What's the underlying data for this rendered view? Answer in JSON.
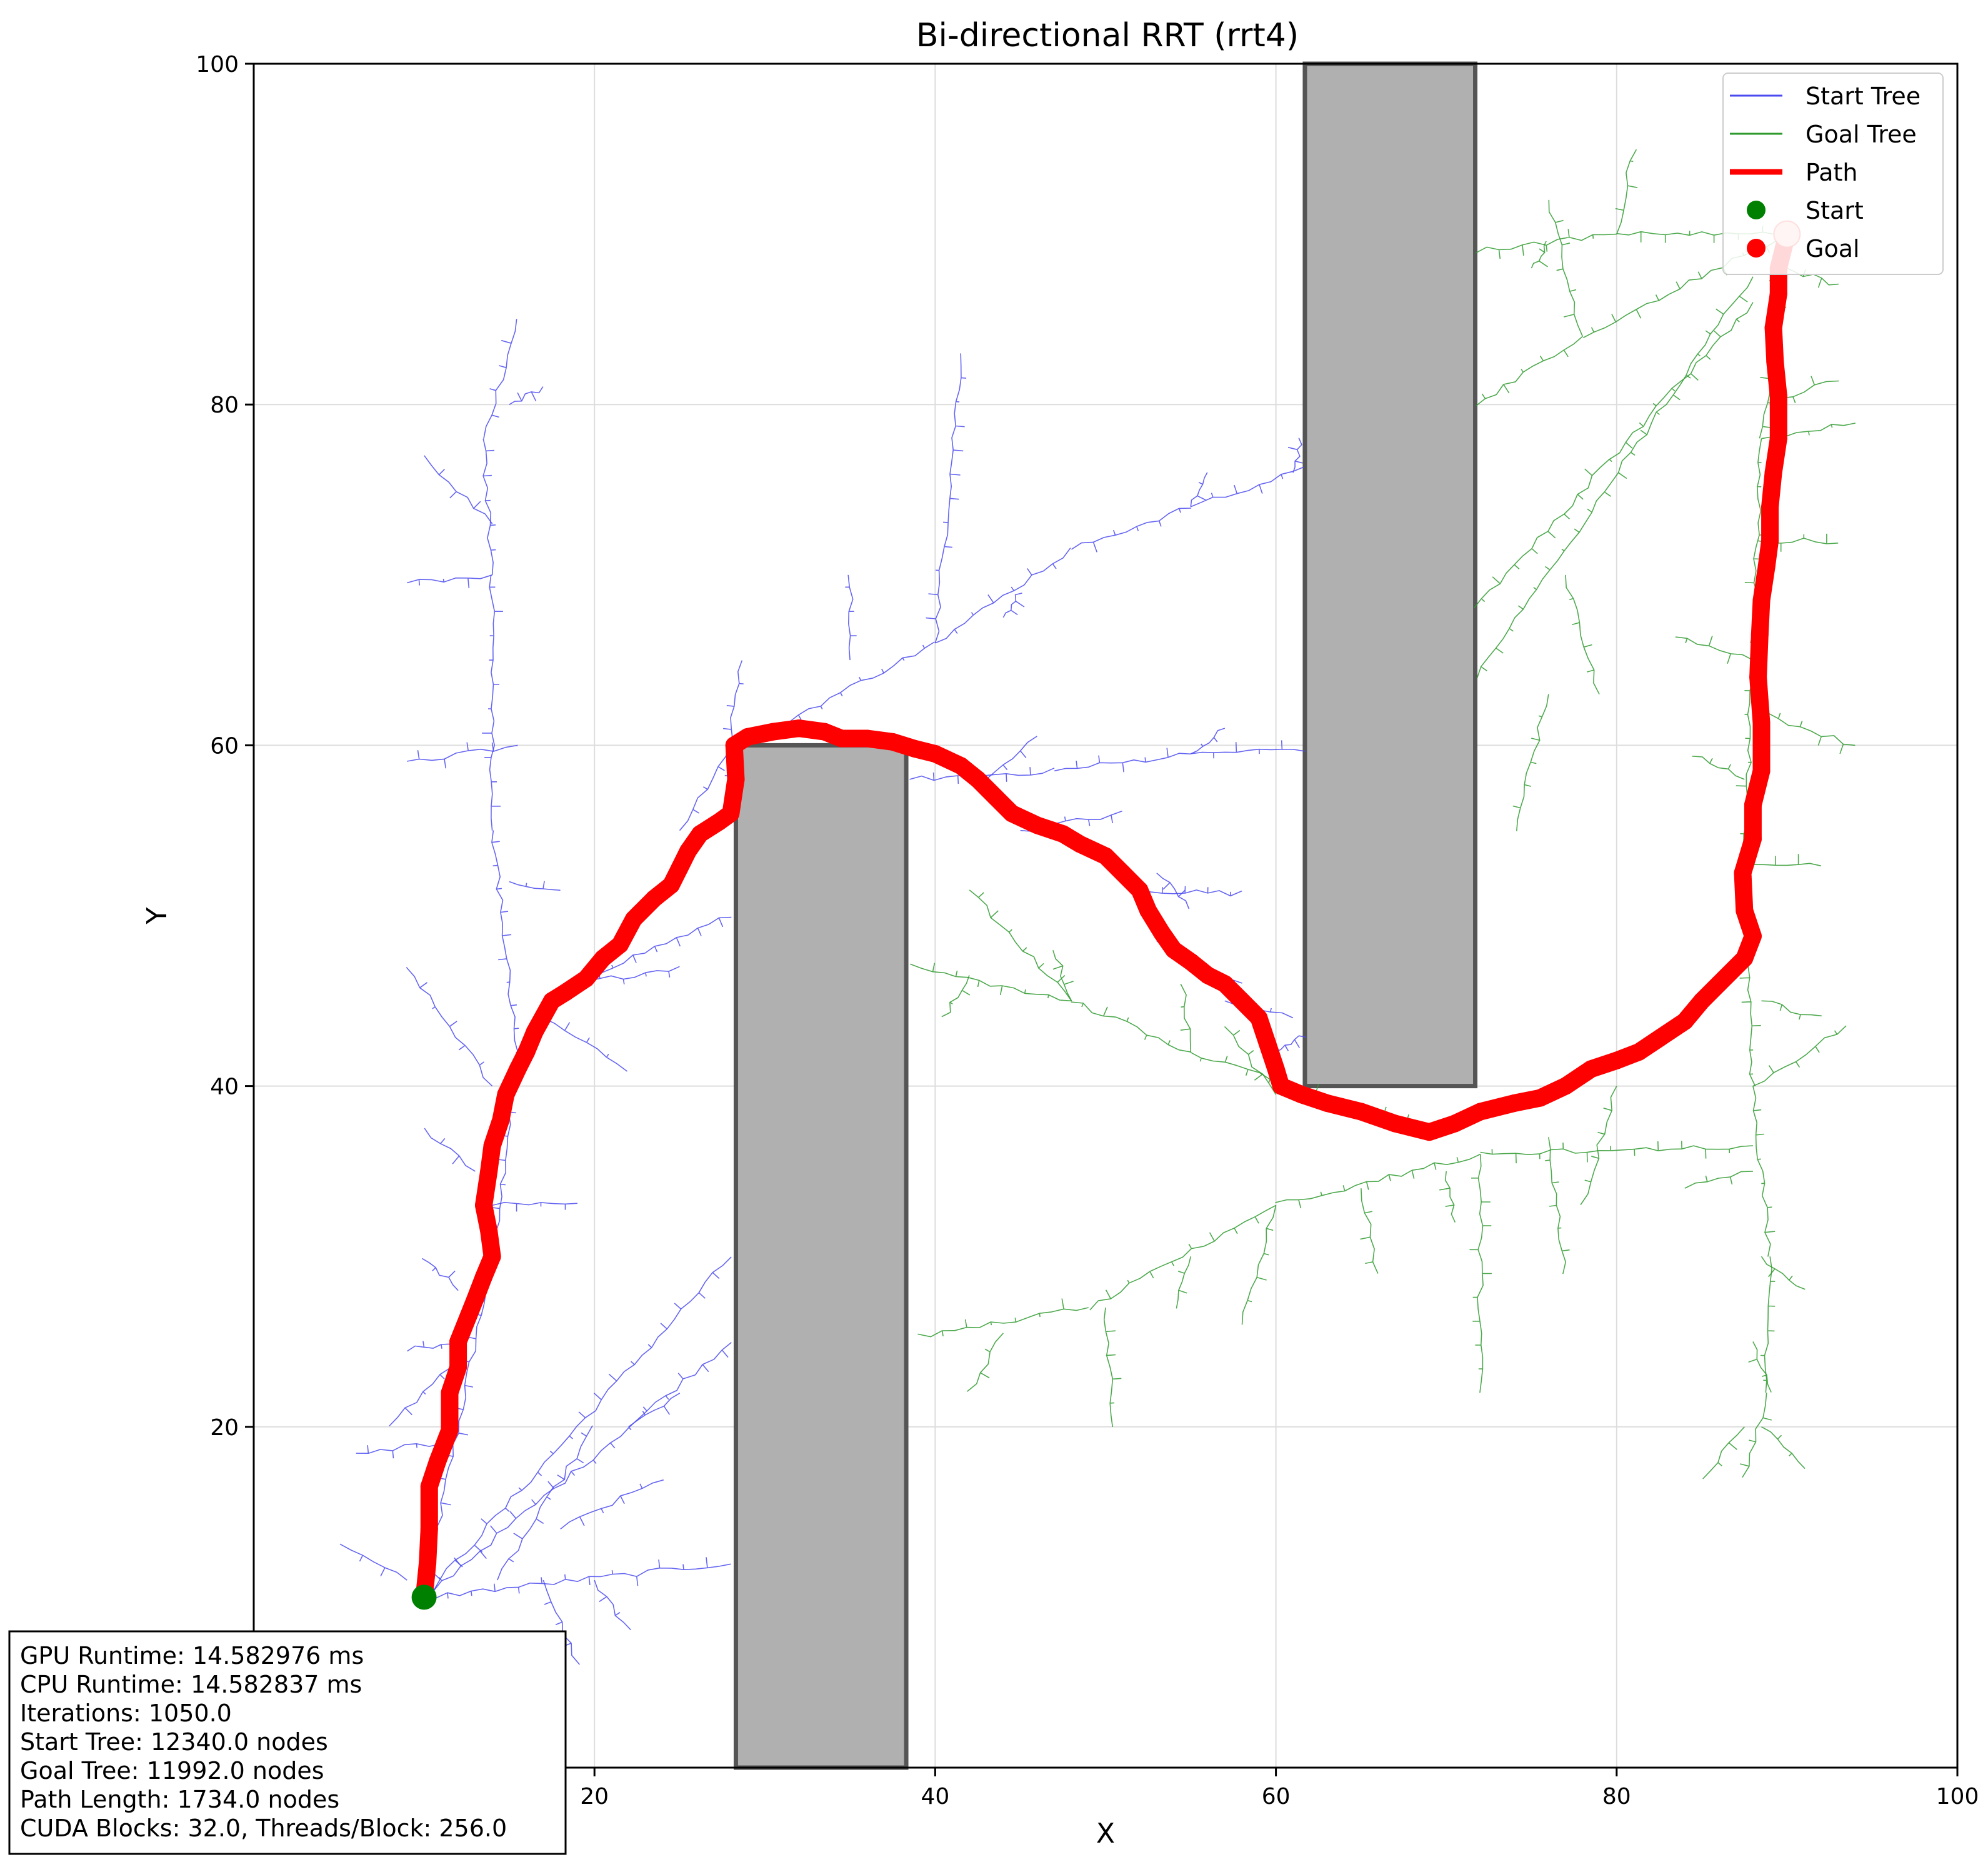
{
  "chart_data": {
    "type": "scatter",
    "title": "Bi-directional RRT (rrt4)",
    "xlabel": "X",
    "ylabel": "Y",
    "xlim": [
      0,
      100
    ],
    "ylim": [
      0,
      100
    ],
    "grid": true,
    "x_ticks": [
      0,
      20,
      40,
      60,
      80,
      100
    ],
    "x_tick_labels": [
      "",
      "20",
      "40",
      "60",
      "80",
      "100"
    ],
    "y_ticks": [
      0,
      20,
      40,
      60,
      80,
      100
    ],
    "y_tick_labels": [
      "",
      "20",
      "40",
      "60",
      "80",
      "100"
    ],
    "legend_position": "top-right",
    "legend": [
      {
        "key": "start_tree",
        "label": "Start Tree",
        "kind": "line",
        "color": "#4a4af0"
      },
      {
        "key": "goal_tree",
        "label": "Goal Tree",
        "kind": "line",
        "color": "#2e9a2e"
      },
      {
        "key": "path",
        "label": "Path",
        "kind": "thick-line",
        "color": "#ff0000"
      },
      {
        "key": "start",
        "label": "Start",
        "kind": "marker",
        "color": "#008000"
      },
      {
        "key": "goal",
        "label": "Goal",
        "kind": "marker",
        "color": "#ff0000"
      }
    ],
    "obstacles": [
      {
        "x": 28.3,
        "y": 0,
        "width": 10,
        "height": 60
      },
      {
        "x": 61.7,
        "y": 40,
        "width": 10,
        "height": 60
      }
    ],
    "start_point": {
      "x": 10,
      "y": 10
    },
    "goal_point": {
      "x": 90,
      "y": 90
    },
    "series": [
      {
        "name": "Path",
        "color": "#ff0000",
        "points": [
          [
            10,
            10
          ],
          [
            10.2,
            12
          ],
          [
            10.3,
            14
          ],
          [
            10.3,
            16.5
          ],
          [
            10.8,
            18
          ],
          [
            11.5,
            19.8
          ],
          [
            11.5,
            22
          ],
          [
            12,
            23.5
          ],
          [
            12,
            25
          ],
          [
            12.6,
            26.5
          ],
          [
            13,
            27.5
          ],
          [
            13.5,
            28.8
          ],
          [
            14,
            30
          ],
          [
            13.8,
            31.5
          ],
          [
            13.5,
            33
          ],
          [
            13.8,
            35
          ],
          [
            14,
            36.5
          ],
          [
            14.5,
            38
          ],
          [
            14.8,
            39.5
          ],
          [
            15.5,
            41
          ],
          [
            16,
            42
          ],
          [
            16.5,
            43.2
          ],
          [
            17.5,
            45
          ],
          [
            18.3,
            45.5
          ],
          [
            19.5,
            46.3
          ],
          [
            20.5,
            47.5
          ],
          [
            21.5,
            48.3
          ],
          [
            22.3,
            49.8
          ],
          [
            23.5,
            51
          ],
          [
            24.5,
            51.8
          ],
          [
            25,
            52.8
          ],
          [
            25.5,
            53.8
          ],
          [
            26.2,
            54.8
          ],
          [
            27.3,
            55.5
          ],
          [
            28,
            56
          ],
          [
            28.3,
            58
          ],
          [
            28.2,
            60
          ],
          [
            29,
            60.5
          ],
          [
            30.5,
            60.8
          ],
          [
            32,
            61
          ],
          [
            33.5,
            60.8
          ],
          [
            34.5,
            60.4
          ],
          [
            36,
            60.4
          ],
          [
            37.5,
            60.2
          ],
          [
            38.8,
            59.8
          ],
          [
            40,
            59.5
          ],
          [
            41.5,
            58.8
          ],
          [
            42.5,
            58
          ],
          [
            43.5,
            57
          ],
          [
            44.5,
            56
          ],
          [
            46,
            55.3
          ],
          [
            47.5,
            54.8
          ],
          [
            48.5,
            54.2
          ],
          [
            50,
            53.5
          ],
          [
            51,
            52.5
          ],
          [
            52,
            51.5
          ],
          [
            52.5,
            50.3
          ],
          [
            53.3,
            49
          ],
          [
            54,
            48
          ],
          [
            55,
            47.3
          ],
          [
            56,
            46.5
          ],
          [
            57,
            46
          ],
          [
            58,
            45
          ],
          [
            59,
            44
          ],
          [
            59.5,
            42.5
          ],
          [
            60,
            41
          ],
          [
            60.3,
            40
          ],
          [
            61.5,
            39.5
          ],
          [
            63,
            39
          ],
          [
            65,
            38.5
          ],
          [
            67,
            37.8
          ],
          [
            69,
            37.3
          ],
          [
            70.5,
            37.8
          ],
          [
            72,
            38.5
          ],
          [
            74,
            39
          ],
          [
            75.5,
            39.3
          ],
          [
            77,
            40
          ],
          [
            78.5,
            41
          ],
          [
            80,
            41.5
          ],
          [
            81.3,
            42
          ],
          [
            82.5,
            42.8
          ],
          [
            84,
            43.8
          ],
          [
            85,
            45
          ],
          [
            86,
            46
          ],
          [
            87.5,
            47.5
          ],
          [
            88,
            48.8
          ],
          [
            87.5,
            50.3
          ],
          [
            87.4,
            52.5
          ],
          [
            88,
            54.5
          ],
          [
            88,
            56.5
          ],
          [
            88.5,
            58.5
          ],
          [
            88.5,
            61.3
          ],
          [
            88.3,
            64
          ],
          [
            88.4,
            66.5
          ],
          [
            88.5,
            68.5
          ],
          [
            88.8,
            70.5
          ],
          [
            89,
            72
          ],
          [
            89,
            74
          ],
          [
            89.2,
            76
          ],
          [
            89.5,
            78
          ],
          [
            89.5,
            80.5
          ],
          [
            89.3,
            82.5
          ],
          [
            89.2,
            84.5
          ],
          [
            89.5,
            86.5
          ],
          [
            89.5,
            88
          ],
          [
            90,
            90
          ]
        ]
      }
    ]
  },
  "stats": {
    "gpu_runtime": "GPU Runtime: 14.582976 ms",
    "cpu_runtime": "CPU Runtime: 14.582837 ms",
    "iterations": "Iterations: 1050.0",
    "start_tree": "Start Tree: 12340.0 nodes",
    "goal_tree": "Goal Tree: 11992.0 nodes",
    "path_length": "Path Length: 1734.0 nodes",
    "cuda": "CUDA Blocks: 32.0, Threads/Block: 256.0"
  }
}
